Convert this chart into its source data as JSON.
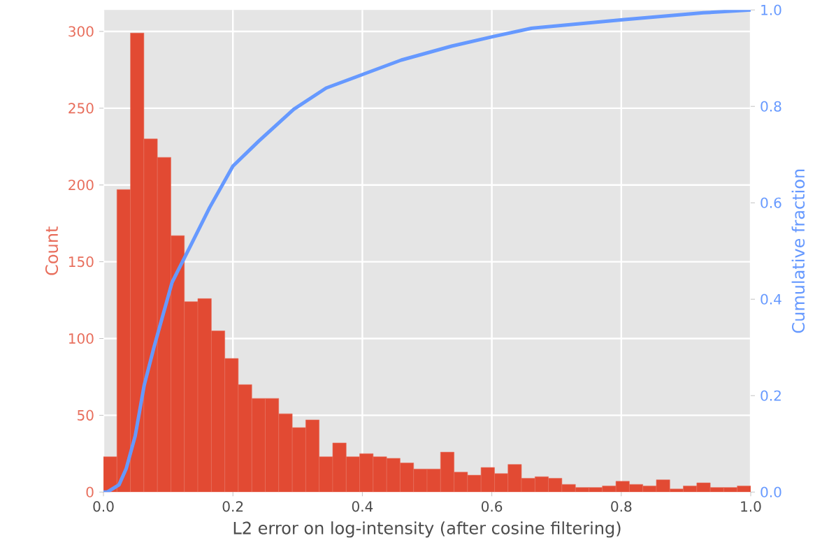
{
  "chart_data": {
    "type": "histogram",
    "xlabel": "L2 error on log-intensity (after cosine filtering)",
    "ylabel": "Count",
    "y2label": "Cumulative fraction",
    "color": "#e24a33",
    "grid": true,
    "bins": [
      0,
      0.0208,
      0.0417,
      0.0625,
      0.0833,
      0.1042,
      0.125,
      0.1458,
      0.1667,
      0.1875,
      0.2083,
      0.2292,
      0.25,
      0.2708,
      0.2917,
      0.3125,
      0.3333,
      0.3542,
      0.375,
      0.3958,
      0.4167,
      0.4375,
      0.4583,
      0.4792,
      0.5,
      0.5208,
      0.5417,
      0.5625,
      0.5833,
      0.6042,
      0.625,
      0.6458,
      0.6667,
      0.6875,
      0.7083,
      0.7292,
      0.75,
      0.7708,
      0.7917,
      0.8125,
      0.8333,
      0.8542,
      0.875,
      0.8958,
      0.9167,
      0.9375,
      0.9583,
      0.9792,
      1.0
    ],
    "values": [
      23,
      197,
      299,
      230,
      218,
      167,
      124,
      126,
      105,
      87,
      70,
      61,
      61,
      51,
      42,
      47,
      23,
      32,
      23,
      25,
      23,
      22,
      19,
      15,
      15,
      26,
      13,
      11,
      16,
      12,
      18,
      9,
      10,
      9,
      5,
      3,
      3,
      4,
      7,
      5,
      4,
      8,
      2,
      4,
      6,
      3,
      3,
      4
    ],
    "series": [
      {
        "type": "line",
        "axis": "y2",
        "color": "#6699ff",
        "x": [
          0,
          0.006,
          0.024,
          0.035,
          0.049,
          0.063,
          0.078,
          0.106,
          0.135,
          0.164,
          0.2,
          0.24,
          0.294,
          0.344,
          0.402,
          0.46,
          0.538,
          0.603,
          0.661,
          0.805,
          0.927,
          1.0
        ],
        "values": [
          0,
          0,
          0.015,
          0.048,
          0.116,
          0.222,
          0.3,
          0.435,
          0.512,
          0.59,
          0.676,
          0.728,
          0.794,
          0.838,
          0.867,
          0.896,
          0.925,
          0.945,
          0.962,
          0.98,
          0.994,
          1.0
        ]
      }
    ],
    "xlim": [
      0,
      1
    ],
    "ylim": [
      0,
      314
    ],
    "y2lim": [
      0,
      1
    ],
    "xticks": [
      {
        "value": 0,
        "label": "0.0"
      },
      {
        "value": 0.2,
        "label": "0.2"
      },
      {
        "value": 0.4,
        "label": "0.4"
      },
      {
        "value": 0.6,
        "label": "0.6"
      },
      {
        "value": 0.8,
        "label": "0.8"
      },
      {
        "value": 1,
        "label": "1.0"
      }
    ],
    "yticks": [
      0,
      50,
      100,
      150,
      200,
      250,
      300
    ],
    "y2ticks": [
      {
        "value": 0,
        "label": "0.0"
      },
      {
        "value": 0.2,
        "label": "0.2"
      },
      {
        "value": 0.4,
        "label": "0.4"
      },
      {
        "value": 0.6,
        "label": "0.6"
      },
      {
        "value": 0.8,
        "label": "0.8"
      },
      {
        "value": 1,
        "label": "1.0"
      }
    ]
  }
}
